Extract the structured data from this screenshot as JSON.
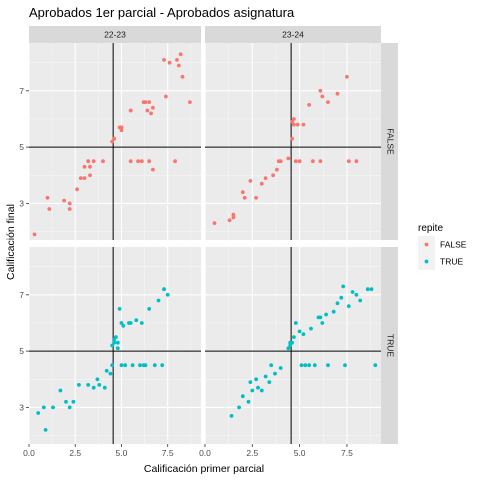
{
  "chart_data": {
    "type": "scatter",
    "title": "Aprobados 1er parcial - Aprobados asignatura",
    "xlabel": "Calificación primer parcial",
    "ylabel": "Calificación final",
    "xlim": [
      0,
      9.3
    ],
    "ylim": [
      1.7,
      8.7
    ],
    "x_ticks": [
      0,
      2.5,
      5,
      7.5
    ],
    "x_tick_labels": [
      "0.0",
      "2.5",
      "5.0",
      "7.5"
    ],
    "y_ticks": [
      3,
      5,
      7
    ],
    "y_tick_labels": [
      "3",
      "5",
      "7"
    ],
    "vline": 4.55,
    "hline": 5,
    "grid": true,
    "legend_position": "right",
    "legend": {
      "title": "repite",
      "entries": [
        {
          "label": "FALSE",
          "color": "#F8766D"
        },
        {
          "label": "TRUE",
          "color": "#00BFC4"
        }
      ]
    },
    "col_facets": [
      "22-23",
      "23-24"
    ],
    "row_facets": [
      "FALSE",
      "TRUE"
    ],
    "panels": [
      {
        "col": "22-23",
        "row": "FALSE",
        "color": "#F8766D",
        "x": [
          0.3,
          1.0,
          1.1,
          1.9,
          2.2,
          2.2,
          2.6,
          2.8,
          3.0,
          3.0,
          3.2,
          3.3,
          3.3,
          3.5,
          4.0,
          4.5,
          4.6,
          4.6,
          4.9,
          5.0,
          5.0,
          5.0,
          5.5,
          5.5,
          5.5,
          5.9,
          6.1,
          6.2,
          6.2,
          6.3,
          6.4,
          6.5,
          6.5,
          6.6,
          6.7,
          6.7,
          7.3,
          7.4,
          7.6,
          7.9,
          8.0,
          8.1,
          8.2,
          8.3,
          8.7
        ],
        "y": [
          1.9,
          3.2,
          2.8,
          3.1,
          2.8,
          3.0,
          3.5,
          3.9,
          4.3,
          3.9,
          4.5,
          4.0,
          4.3,
          4.5,
          4.5,
          5.2,
          5.3,
          5.3,
          5.7,
          5.6,
          5.7,
          5.7,
          6.3,
          6.3,
          4.5,
          4.5,
          4.5,
          6.6,
          6.6,
          6.6,
          6.3,
          4.5,
          6.6,
          6.2,
          4.2,
          6.4,
          8.1,
          6.8,
          8.0,
          4.5,
          8.1,
          7.9,
          8.3,
          7.5,
          6.6
        ]
      },
      {
        "col": "23-24",
        "row": "FALSE",
        "color": "#F8766D",
        "x": [
          0.5,
          1.3,
          1.5,
          1.5,
          2.0,
          2.1,
          2.4,
          2.7,
          3.0,
          3.2,
          3.6,
          3.8,
          3.9,
          4.0,
          4.4,
          4.6,
          4.6,
          4.7,
          4.7,
          4.8,
          4.9,
          5.0,
          5.2,
          5.5,
          5.7,
          6.1,
          6.1,
          6.2,
          6.5,
          7.0,
          7.5,
          7.6,
          8.0
        ],
        "y": [
          2.3,
          2.4,
          2.6,
          2.5,
          3.4,
          3.2,
          3.8,
          3.2,
          3.7,
          3.9,
          4.0,
          4.2,
          4.5,
          4.5,
          4.6,
          5.3,
          5.9,
          5.8,
          6.0,
          4.5,
          5.8,
          4.5,
          5.8,
          6.5,
          4.5,
          7.0,
          4.5,
          6.8,
          6.6,
          6.9,
          7.5,
          4.5,
          4.5
        ]
      },
      {
        "col": "22-23",
        "row": "TRUE",
        "color": "#00BFC4",
        "x": [
          0.5,
          0.8,
          0.9,
          1.3,
          1.7,
          2.0,
          2.2,
          2.4,
          2.7,
          3.2,
          3.5,
          3.7,
          3.8,
          4.1,
          4.2,
          4.4,
          4.5,
          4.5,
          4.6,
          4.6,
          4.7,
          4.8,
          4.8,
          4.9,
          5.0,
          5.0,
          5.1,
          5.2,
          5.4,
          5.5,
          5.6,
          5.8,
          6.0,
          6.1,
          6.2,
          6.3,
          6.5,
          6.8,
          7.0,
          7.2,
          7.3,
          7.5
        ],
        "y": [
          2.8,
          3.0,
          2.2,
          3.0,
          3.6,
          3.2,
          3.0,
          3.2,
          3.8,
          3.8,
          3.7,
          4.0,
          3.8,
          3.7,
          4.3,
          4.2,
          4.5,
          5.2,
          5.3,
          5.4,
          5.5,
          5.1,
          5.3,
          6.5,
          4.5,
          6.0,
          5.9,
          4.5,
          6.0,
          6.0,
          4.5,
          6.1,
          4.5,
          6.0,
          4.5,
          4.5,
          6.5,
          4.5,
          6.8,
          4.5,
          7.2,
          7.0
        ]
      },
      {
        "col": "23-24",
        "row": "TRUE",
        "color": "#00BFC4",
        "x": [
          1.4,
          1.8,
          2.0,
          2.3,
          2.4,
          2.5,
          2.7,
          2.8,
          3.0,
          3.2,
          3.4,
          3.5,
          3.7,
          4.0,
          4.4,
          4.5,
          4.5,
          4.6,
          4.7,
          4.8,
          5.0,
          5.1,
          5.2,
          5.3,
          5.5,
          5.6,
          5.8,
          6.0,
          6.1,
          6.2,
          6.4,
          6.5,
          6.8,
          7.0,
          7.2,
          7.3,
          7.4,
          7.6,
          7.8,
          8.0,
          8.2,
          8.6,
          8.8,
          9.0
        ],
        "y": [
          2.7,
          3.0,
          3.4,
          3.2,
          3.9,
          3.6,
          4.0,
          3.7,
          3.6,
          4.1,
          3.9,
          4.5,
          4.2,
          4.4,
          5.1,
          5.2,
          5.3,
          5.3,
          5.5,
          6.0,
          5.7,
          4.5,
          5.6,
          4.5,
          4.5,
          5.8,
          4.5,
          6.2,
          6.2,
          6.0,
          6.3,
          4.5,
          6.4,
          6.7,
          6.9,
          7.3,
          4.5,
          6.6,
          7.1,
          7.0,
          6.8,
          7.2,
          7.2,
          4.5
        ]
      }
    ]
  }
}
